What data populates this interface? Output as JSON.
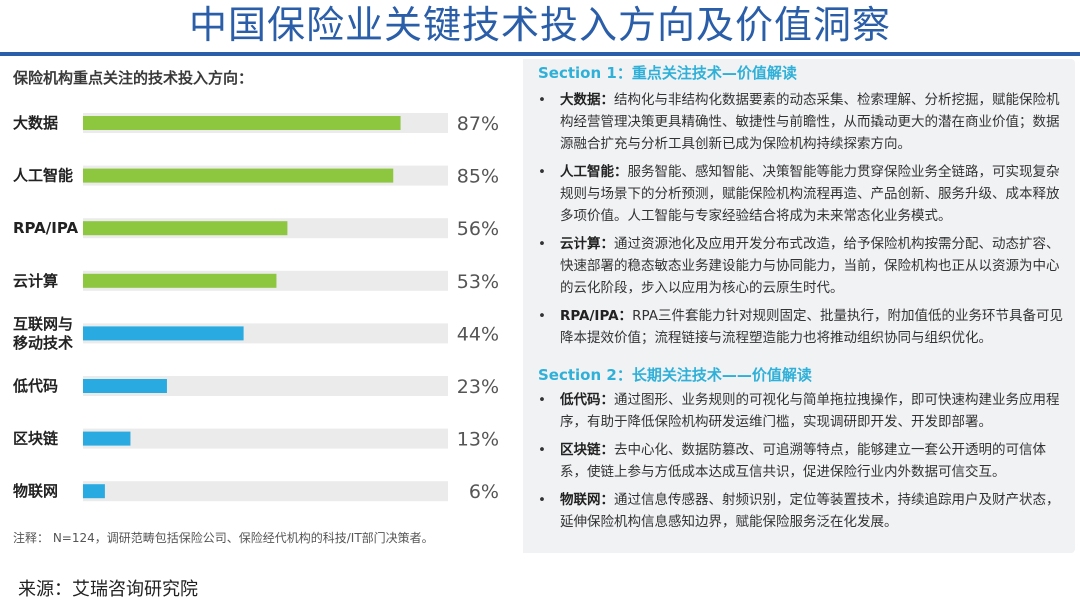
{
  "page_title": "中国保险业关键技术投入方向及价值洞察",
  "chart_heading": "保险机构重点关注的技术投入方向：",
  "footnote": "注释： N=124，调研范畴包括保险公司、保险经代机构的科技/IT部门决策者。",
  "source": "来源：艾瑞咨询研究院",
  "colors": {
    "title": "#2b5ea8",
    "green": "#8dc63f",
    "blue": "#29abe2",
    "track": "#ebebeb",
    "section": "#2fb0d8"
  },
  "chart_data": {
    "type": "bar",
    "orientation": "horizontal",
    "categories": [
      "大数据",
      "人工智能",
      "RPA/IPA",
      "云计算",
      "互联网与\n移动技术",
      "低代码",
      "区块链",
      "物联网"
    ],
    "values": [
      87,
      85,
      56,
      53,
      44,
      23,
      13,
      6
    ],
    "value_labels": [
      "87%",
      "85%",
      "56%",
      "53%",
      "44%",
      "23%",
      "13%",
      "6%"
    ],
    "bar_colors": [
      "green",
      "green",
      "green",
      "green",
      "blue",
      "blue",
      "blue",
      "blue"
    ],
    "xlim": [
      0,
      100
    ],
    "grid": false,
    "legend": "none"
  },
  "sections": [
    {
      "title": "Section 1：重点关注技术—价值解读",
      "items": [
        {
          "name": "大数据：",
          "text": "结构化与非结构化数据要素的动态采集、检索理解、分析挖掘，赋能保险机构经营管理决策更具精确性、敏捷性与前瞻性，从而撬动更大的潜在商业价值；数据源融合扩充与分析工具创新已成为保险机构持续探索方向。"
        },
        {
          "name": "人工智能：",
          "text": "服务智能、感知智能、决策智能等能力贯穿保险业务全链路，可实现复杂规则与场景下的分析预测，赋能保险机构流程再造、产品创新、服务升级、成本释放多项价值。人工智能与专家经验结合将成为未来常态化业务模式。"
        },
        {
          "name": "云计算：",
          "text": "通过资源池化及应用开发分布式改造，给予保险机构按需分配、动态扩容、快速部署的稳态敏态业务建设能力与协同能力，当前，保险机构也正从以资源为中心的云化阶段，步入以应用为核心的云原生时代。"
        },
        {
          "name": "RPA/IPA：",
          "text": "RPA三件套能力针对规则固定、批量执行，附加值低的业务环节具备可见降本提效价值；流程链接与流程塑造能力也将推动组织协同与组织优化。"
        }
      ]
    },
    {
      "title": "Section 2：长期关注技术——价值解读",
      "items": [
        {
          "name": "低代码：",
          "text": "通过图形、业务规则的可视化与简单拖拉拽操作，即可快速构建业务应用程序，有助于降低保险机构研发运维门槛，实现调研即开发、开发即部署。"
        },
        {
          "name": "区块链：",
          "text": "去中心化、数据防篡改、可追溯等特点，能够建立一套公开透明的可信体系，使链上参与方低成本达成互信共识，促进保险行业内外数据可信交互。"
        },
        {
          "name": "物联网：",
          "text": "通过信息传感器、射频识别，定位等装置技术，持续追踪用户及财产状态，延伸保险机构信息感知边界，赋能保险服务泛在化发展。"
        }
      ]
    }
  ]
}
